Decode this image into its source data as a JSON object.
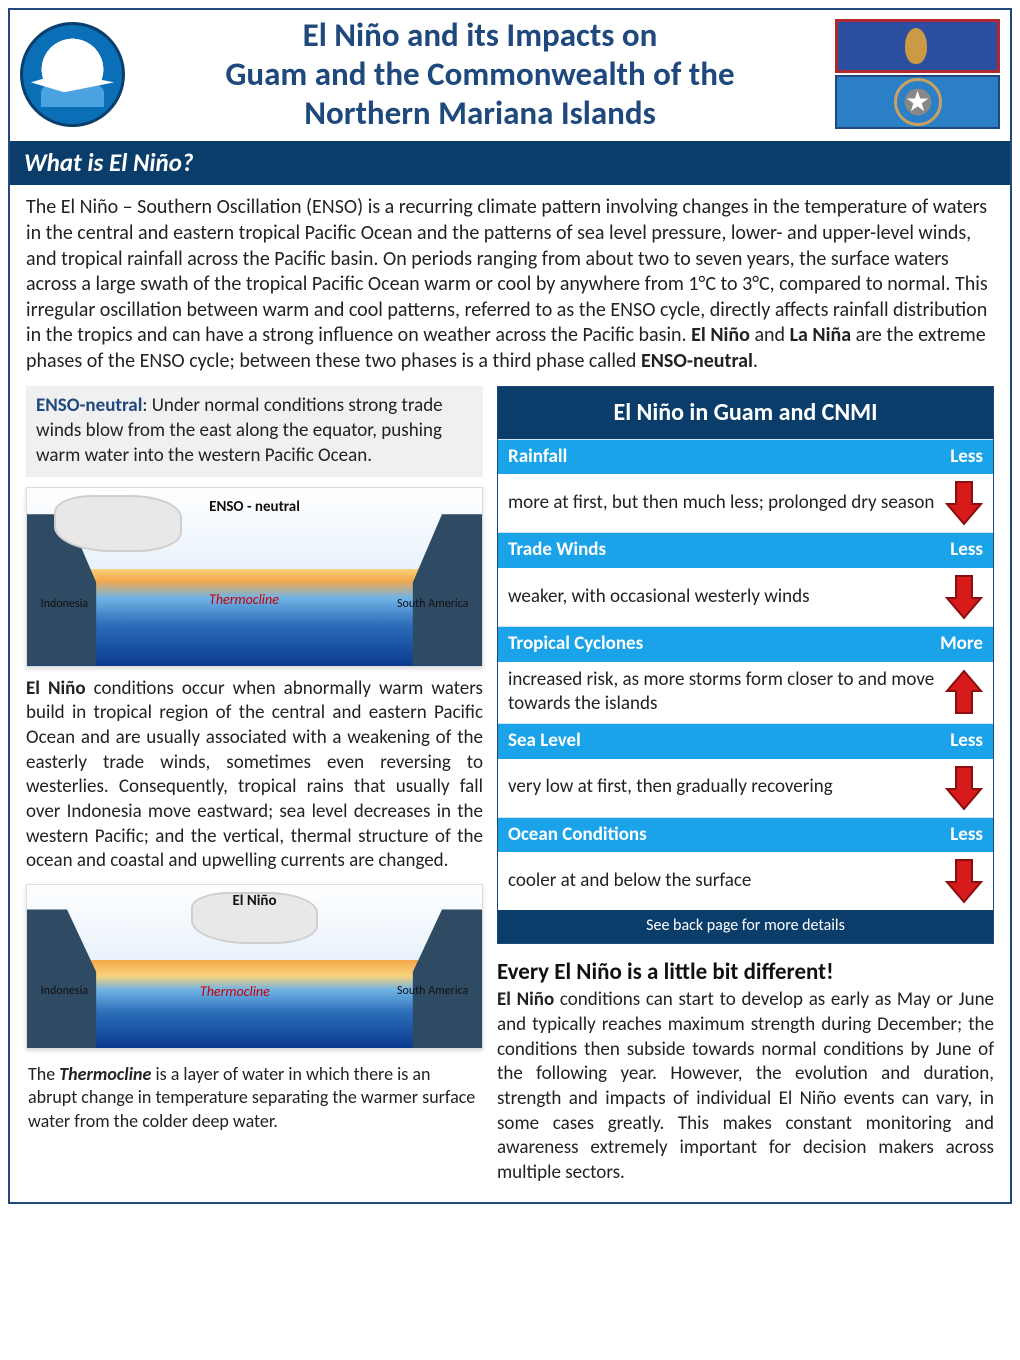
{
  "header": {
    "title_line1": "El Niño and its Impacts on",
    "title_line2": "Guam and the Commonwealth of the",
    "title_line3": "Northern Mariana Islands",
    "logo_name": "noaa-logo",
    "flag_top": "guam-flag",
    "flag_bottom": "cnmi-flag"
  },
  "colors": {
    "brand_navy": "#0b3d6b",
    "brand_blue": "#1aa3e8",
    "arrow_red": "#d71a1a",
    "arrow_outline": "#8a0e0e"
  },
  "section1": {
    "heading": "What is El Niño?",
    "para": "The El Niño – Southern Oscillation (ENSO) is a recurring climate pattern involving changes in the temperature of waters in the central and eastern tropical Pacific Ocean and the patterns of sea level pressure, lower- and upper-level winds, and tropical rainfall across the Pacific basin. On periods ranging from about two to seven years, the surface waters across a large swath of the tropical Pacific Ocean warm or cool by anywhere from 1°C to 3°C, compared to normal. This irregular oscillation between warm and cool patterns, referred to as the ENSO cycle, directly affects rainfall distribution in the tropics and can have a strong influence on weather across the Pacific basin. ",
    "bold1": "El Niño",
    "mid": " and ",
    "bold2": "La Niña",
    "tail": " are the extreme phases of the ENSO cycle; between these two phases is a third phase called ",
    "bold3": "ENSO-neutral",
    "period": "."
  },
  "left": {
    "neutral_label": "ENSO-neutral",
    "neutral_text": ":  Under normal conditions strong trade winds blow from the east along the equator, pushing warm water into the western Pacific Ocean.",
    "diagram1_title": "ENSO - neutral",
    "diagram_left_label": "Indonesia",
    "diagram_right_label": "South America",
    "thermocline": "Thermocline",
    "elnino_label": "El Niño",
    "elnino_text": " conditions occur when abnormally warm waters build in tropical region of the central and eastern Pacific Ocean and are usually associated with a weakening of the easterly trade winds, sometimes even reversing to westerlies. Consequently, tropical rains that usually fall over Indonesia move eastward; sea level decreases in the western Pacific; and the vertical, thermal structure of the ocean and coastal and upwelling currents are changed.",
    "diagram2_title": "El Niño",
    "footnote_pre": " The ",
    "footnote_bold": "Thermocline",
    "footnote_post": " is a layer of water in which there is an abrupt change in temperature separating the warmer surface water from the colder deep water."
  },
  "table": {
    "title": "El Niño in Guam and CNMI",
    "rows": [
      {
        "head": "Rainfall",
        "tag": "Less",
        "dir": "down",
        "desc": "more at first, but then much less; prolonged dry season"
      },
      {
        "head": "Trade Winds",
        "tag": "Less",
        "dir": "down",
        "desc": "weaker, with occasional westerly winds"
      },
      {
        "head": "Tropical Cyclones",
        "tag": "More",
        "dir": "up",
        "desc": "increased risk, as more storms form closer to and move towards the islands"
      },
      {
        "head": "Sea Level",
        "tag": "Less",
        "dir": "down",
        "desc": "very low at first, then gradually recovering"
      },
      {
        "head": "Ocean Conditions",
        "tag": "Less",
        "dir": "down",
        "desc": "cooler at and below the surface"
      }
    ],
    "footer": "See back page for more details"
  },
  "right_text": {
    "subhead": "Every El Niño is a little bit different!",
    "bold": "El Niño",
    "body": " conditions can start to develop as early as May or June and typically reaches maximum strength during December; the conditions then subside towards normal conditions by June of the following year.  However, the evolution and duration, strength and impacts of individual El Niño events can vary, in some cases greatly. This makes constant monitoring and awareness extremely important for decision makers across multiple sectors."
  }
}
